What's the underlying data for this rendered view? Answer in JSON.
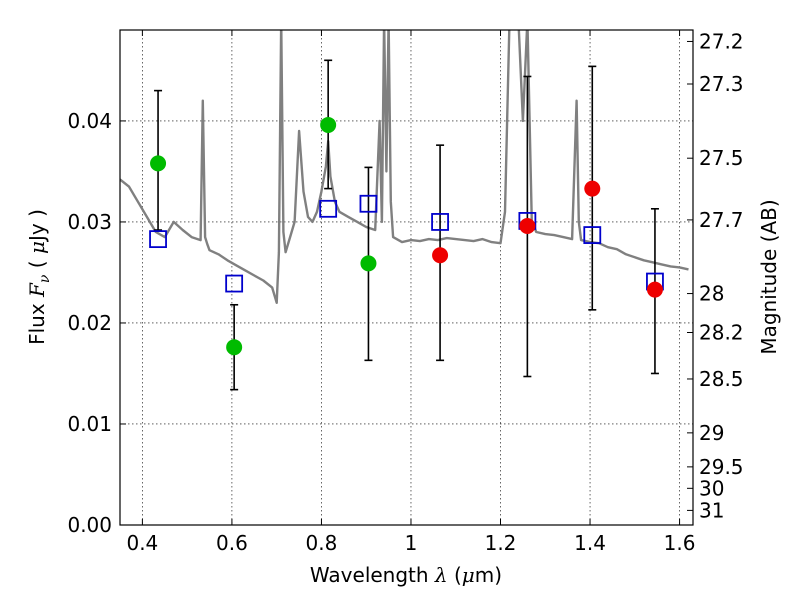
{
  "chart_data": {
    "type": "scatter",
    "xlabel": {
      "pre": "Wavelength  ",
      "symbol": "λ",
      "post": " (",
      "unit_sym": "μ",
      "unit": "m)"
    },
    "ylabel": {
      "pre": "Flux  ",
      "symbol": "F",
      "sub": "ν",
      "post": "  ( ",
      "unit_sym": "μ",
      "unit": "Jy )"
    },
    "y2label": "Magnitude (AB)",
    "xlim": [
      0.35,
      1.63
    ],
    "ylim": [
      0.0,
      0.049
    ],
    "grid": true,
    "x_ticks": [
      {
        "v": 0.4,
        "label": "0.4"
      },
      {
        "v": 0.6,
        "label": "0.6"
      },
      {
        "v": 0.8,
        "label": "0.8"
      },
      {
        "v": 1.0,
        "label": "1"
      },
      {
        "v": 1.2,
        "label": "1.2"
      },
      {
        "v": 1.4,
        "label": "1.4"
      },
      {
        "v": 1.6,
        "label": "1.6"
      }
    ],
    "y_ticks": [
      {
        "v": 0.0,
        "label": "0.00"
      },
      {
        "v": 0.01,
        "label": "0.01"
      },
      {
        "v": 0.02,
        "label": "0.02"
      },
      {
        "v": 0.03,
        "label": "0.03"
      },
      {
        "v": 0.04,
        "label": "0.04"
      }
    ],
    "mag_ticks": [
      {
        "mag": 27.2,
        "label": "27.2"
      },
      {
        "mag": 27.3,
        "label": "27.3"
      },
      {
        "mag": 27.5,
        "label": "27.5"
      },
      {
        "mag": 27.7,
        "label": "27.7"
      },
      {
        "mag": 28.0,
        "label": "28"
      },
      {
        "mag": 28.2,
        "label": "28.2"
      },
      {
        "mag": 28.5,
        "label": "28.5"
      },
      {
        "mag": 29.0,
        "label": "29"
      },
      {
        "mag": 29.5,
        "label": "29.5"
      },
      {
        "mag": 30.0,
        "label": "30"
      },
      {
        "mag": 31.0,
        "label": "31"
      }
    ],
    "series": [
      {
        "name": "model SED",
        "kind": "line",
        "color": "#808080",
        "x": [
          0.35,
          0.37,
          0.39,
          0.41,
          0.43,
          0.45,
          0.47,
          0.49,
          0.51,
          0.53,
          0.535,
          0.54,
          0.545,
          0.55,
          0.57,
          0.59,
          0.61,
          0.63,
          0.65,
          0.67,
          0.69,
          0.7,
          0.705,
          0.71,
          0.715,
          0.72,
          0.73,
          0.74,
          0.75,
          0.76,
          0.77,
          0.78,
          0.79,
          0.8,
          0.81,
          0.815,
          0.82,
          0.83,
          0.84,
          0.86,
          0.88,
          0.9,
          0.92,
          0.93,
          0.935,
          0.94,
          0.945,
          0.95,
          0.955,
          0.96,
          0.98,
          1.0,
          1.02,
          1.04,
          1.06,
          1.08,
          1.1,
          1.12,
          1.14,
          1.16,
          1.18,
          1.2,
          1.21,
          1.22,
          1.24,
          1.25,
          1.26,
          1.27,
          1.28,
          1.3,
          1.32,
          1.34,
          1.36,
          1.37,
          1.375,
          1.38,
          1.4,
          1.42,
          1.44,
          1.46,
          1.48,
          1.5,
          1.52,
          1.54,
          1.56,
          1.58,
          1.6,
          1.62
        ],
        "y": [
          0.0342,
          0.0335,
          0.032,
          0.0305,
          0.029,
          0.0285,
          0.03,
          0.0292,
          0.0285,
          0.0282,
          0.042,
          0.0285,
          0.0278,
          0.0272,
          0.0268,
          0.0262,
          0.0257,
          0.0252,
          0.0247,
          0.0242,
          0.0235,
          0.022,
          0.027,
          0.05,
          0.029,
          0.027,
          0.0285,
          0.03,
          0.039,
          0.033,
          0.0305,
          0.03,
          0.031,
          0.033,
          0.0355,
          0.038,
          0.0345,
          0.032,
          0.031,
          0.0305,
          0.03,
          0.0295,
          0.0292,
          0.04,
          0.03,
          0.05,
          0.035,
          0.05,
          0.032,
          0.0285,
          0.028,
          0.0282,
          0.0281,
          0.0283,
          0.0282,
          0.0284,
          0.0283,
          0.0282,
          0.0281,
          0.0283,
          0.028,
          0.0279,
          0.031,
          0.05,
          0.05,
          0.04,
          0.05,
          0.03,
          0.029,
          0.0288,
          0.0287,
          0.0285,
          0.0283,
          0.042,
          0.03,
          0.0282,
          0.028,
          0.0279,
          0.0275,
          0.0273,
          0.0268,
          0.0265,
          0.0262,
          0.026,
          0.0258,
          0.0256,
          0.0255,
          0.0253
        ]
      },
      {
        "name": "model photometry",
        "kind": "open-square",
        "color": "#0000cc",
        "x": [
          0.435,
          0.605,
          0.815,
          0.905,
          1.065,
          1.26,
          1.405,
          1.545
        ],
        "y": [
          0.0283,
          0.0239,
          0.0313,
          0.0318,
          0.03,
          0.0301,
          0.0287,
          0.0241
        ]
      },
      {
        "name": "observed (green)",
        "kind": "point-error",
        "color": "#00bb00",
        "x": [
          0.435,
          0.605,
          0.815,
          0.905
        ],
        "y": [
          0.0358,
          0.0176,
          0.0396,
          0.0259
        ],
        "yerr_low": [
          0.0292,
          0.0134,
          0.0333,
          0.0163
        ],
        "yerr_high": [
          0.043,
          0.0218,
          0.046,
          0.0354
        ]
      },
      {
        "name": "observed (red)",
        "kind": "point-error",
        "color": "#ee0000",
        "x": [
          1.065,
          1.26,
          1.405,
          1.545
        ],
        "y": [
          0.0267,
          0.0296,
          0.0333,
          0.0233
        ],
        "yerr_low": [
          0.0163,
          0.0147,
          0.0213,
          0.015
        ],
        "yerr_high": [
          0.0376,
          0.0444,
          0.0454,
          0.0313
        ]
      }
    ]
  }
}
